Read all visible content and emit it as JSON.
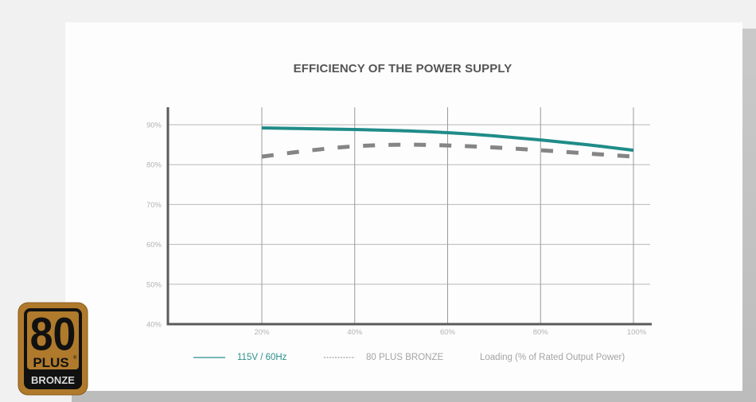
{
  "chart_data": {
    "type": "line",
    "title": "EFFICIENCY OF THE POWER SUPPLY",
    "xlabel": "Loading (% of Rated Output Power)",
    "ylabel": "",
    "x": [
      20,
      30,
      40,
      50,
      60,
      70,
      80,
      90,
      100
    ],
    "x_ticks": [
      20,
      40,
      60,
      80,
      100
    ],
    "x_tick_labels": [
      "20%",
      "40%",
      "60%",
      "80%",
      "100%"
    ],
    "y_ticks": [
      40,
      50,
      60,
      70,
      80,
      90
    ],
    "y_tick_labels": [
      "40%",
      "50%",
      "60%",
      "70%",
      "80%",
      "90%"
    ],
    "xlim": [
      0,
      100
    ],
    "ylim": [
      40,
      95
    ],
    "grid": true,
    "legend_position": "bottom",
    "series": [
      {
        "name": "115V / 60Hz",
        "style": "solid",
        "color": "#1f8c88",
        "values": [
          89.2,
          89.0,
          88.8,
          88.5,
          88.0,
          87.2,
          86.2,
          85.0,
          83.6
        ]
      },
      {
        "name": "80 PLUS BRONZE",
        "style": "dashed",
        "color": "#858585",
        "values": [
          82.0,
          83.5,
          84.6,
          85.0,
          84.8,
          84.3,
          83.6,
          82.8,
          82.0
        ]
      }
    ]
  },
  "legend": {
    "series_a": "115V / 60Hz",
    "series_b": "80 PLUS BRONZE",
    "axis_note": "Loading (% of Rated Output Power)"
  },
  "badge": {
    "number": "80",
    "plus": "PLUS",
    "registered": "®",
    "tier": "BRONZE",
    "color": "#b17a2a"
  }
}
